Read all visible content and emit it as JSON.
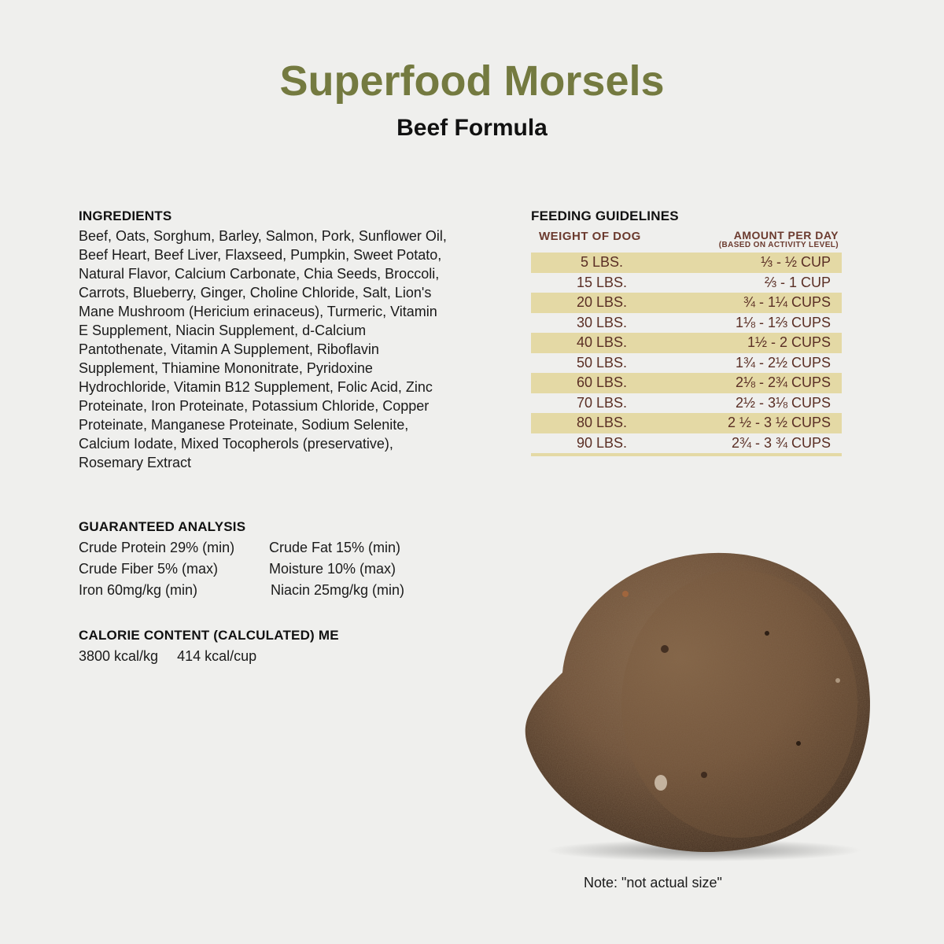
{
  "header": {
    "title": "Superfood Morsels",
    "subtitle": "Beef Formula"
  },
  "ingredients": {
    "heading": "INGREDIENTS",
    "text": "Beef, Oats, Sorghum, Barley, Salmon, Pork, Sunflower Oil, Beef Heart, Beef Liver, Flaxseed, Pumpkin, Sweet Potato, Natural Flavor, Calcium Carbonate, Chia Seeds, Broccoli, Carrots, Blueberry, Ginger, Choline Chloride, Salt, Lion's Mane Mushroom (Hericium erinaceus), Turmeric, Vitamin E Supplement, Niacin Supplement, d-Calcium Pantothenate, Vitamin A Supplement, Riboflavin Supplement, Thiamine Mononitrate, Pyridoxine Hydrochloride, Vitamin B12 Supplement, Folic Acid, Zinc Proteinate, Iron Proteinate, Potassium Chloride, Copper Proteinate, Manganese Proteinate, Sodium Selenite, Calcium Iodate, Mixed Tocopherols (preservative), Rosemary Extract"
  },
  "analysis": {
    "heading": "GUARANTEED ANALYSIS",
    "items": [
      "Crude Protein 29% (min)",
      "Crude Fat 15% (min)",
      "Crude Fiber 5% (max)",
      "Moisture 10% (max)",
      "Iron 60mg/kg (min)",
      "Niacin 25mg/kg (min)"
    ]
  },
  "calorie": {
    "heading": "CALORIE CONTENT (CALCULATED) ME",
    "per_kg": "3800 kcal/kg",
    "per_cup": "414 kcal/cup"
  },
  "feeding": {
    "heading": "FEEDING GUIDELINES",
    "col_weight": "WEIGHT OF DOG",
    "col_amount": "AMOUNT PER DAY",
    "col_amount_note": "(BASED ON ACTIVITY LEVEL)",
    "rows": [
      {
        "weight": "5 LBS.",
        "amount": "⅓ - ½ CUP"
      },
      {
        "weight": "15 LBS.",
        "amount": "⅔ - 1 CUP"
      },
      {
        "weight": "20 LBS.",
        "amount": "¾ - 1¼ CUPS"
      },
      {
        "weight": "30 LBS.",
        "amount": "1⅛ - 1⅔ CUPS"
      },
      {
        "weight": "40 LBS.",
        "amount": "1½ - 2 CUPS"
      },
      {
        "weight": "50 LBS.",
        "amount": "1¾ - 2½ CUPS"
      },
      {
        "weight": "60 LBS.",
        "amount": "2⅛ - 2¾ CUPS"
      },
      {
        "weight": "70 LBS.",
        "amount": "2½ - 3⅛ CUPS"
      },
      {
        "weight": "80 LBS.",
        "amount": "2 ½ - 3 ½ CUPS"
      },
      {
        "weight": "90 LBS.",
        "amount": "2¾ - 3 ¾ CUPS"
      }
    ],
    "stripe_color": "#e4d9a5",
    "text_color": "#5a2e24"
  },
  "note": "Note: \"not actual size\"",
  "colors": {
    "title": "#747a40",
    "background": "#efefed"
  }
}
